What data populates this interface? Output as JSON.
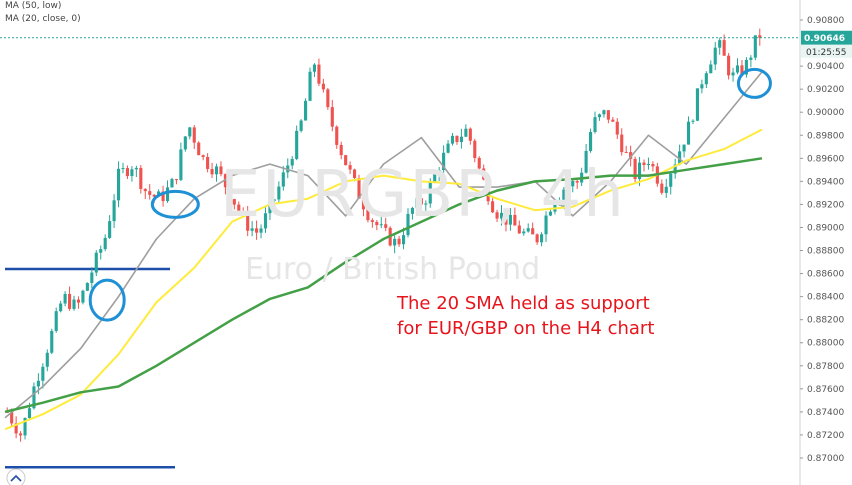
{
  "legend": {
    "ma50": "MA (50, low)",
    "ma20": "MA (20, close, 0)"
  },
  "watermark": {
    "symbol": "EURGBP, 4h",
    "description": "Euro / British Pound"
  },
  "annotation": {
    "line1": "The 20 SMA held as support",
    "line2": "for EUR/GBP on the H4 chart"
  },
  "current_price_label": "0.90646",
  "countdown_label": "01:25:55",
  "colors": {
    "up_candle": "#26a69a",
    "down_candle": "#ef5350",
    "ma20": "#9e9e9e",
    "ma50_low": "#ffeb3b",
    "ma_green": "#43a047",
    "support_line": "#1e4fa8",
    "circle": "#1e90d6",
    "price_tag": "#26a69a",
    "annotation": "#e8141c"
  },
  "chart_data": {
    "type": "line",
    "title": "",
    "y_axis_ticks": [
      "0.90800",
      "0.90400",
      "0.90200",
      "0.90000",
      "0.89800",
      "0.89600",
      "0.89400",
      "0.89200",
      "0.89000",
      "0.88800",
      "0.88600",
      "0.88400",
      "0.88200",
      "0.88000",
      "0.87800",
      "0.87600",
      "0.87400",
      "0.87200",
      "0.87000"
    ],
    "ylim": [
      0.8688,
      0.9088
    ],
    "x": [
      0,
      5,
      10,
      15,
      20,
      25,
      30,
      35,
      40,
      45,
      50,
      55,
      60,
      65,
      70,
      75,
      80,
      85,
      90,
      95,
      100
    ],
    "series": [
      {
        "name": "MA (20, close, 0)",
        "values": [
          0.8735,
          0.8762,
          0.8795,
          0.884,
          0.889,
          0.8925,
          0.8945,
          0.8955,
          0.8945,
          0.891,
          0.8955,
          0.8978,
          0.8935,
          0.8935,
          0.894,
          0.891,
          0.894,
          0.898,
          0.8955,
          0.8995,
          0.9035
        ]
      },
      {
        "name": "MA (50, low)",
        "values": [
          0.8725,
          0.8738,
          0.8755,
          0.879,
          0.8835,
          0.8865,
          0.8905,
          0.892,
          0.8925,
          0.894,
          0.8945,
          0.894,
          0.8938,
          0.8925,
          0.8915,
          0.8918,
          0.8932,
          0.8942,
          0.8958,
          0.8968,
          0.8985
        ]
      },
      {
        "name": "",
        "values": [
          0.874,
          0.8748,
          0.8757,
          0.8762,
          0.878,
          0.88,
          0.882,
          0.8838,
          0.8848,
          0.887,
          0.889,
          0.8905,
          0.892,
          0.8932,
          0.894,
          0.8942,
          0.8945,
          0.8945,
          0.895,
          0.8955,
          0.896
        ]
      }
    ],
    "candle_path": [
      0.874,
      0.872,
      0.8765,
      0.88,
      0.884,
      0.883,
      0.886,
      0.889,
      0.8945,
      0.8955,
      0.893,
      0.8925,
      0.894,
      0.899,
      0.896,
      0.895,
      0.893,
      0.8905,
      0.8895,
      0.892,
      0.895,
      0.8985,
      0.9045,
      0.9,
      0.8965,
      0.8935,
      0.891,
      0.8895,
      0.8885,
      0.8915,
      0.8925,
      0.8955,
      0.8975,
      0.8985,
      0.8945,
      0.8915,
      0.8905,
      0.8895,
      0.889,
      0.892,
      0.8935,
      0.894,
      0.899,
      0.9,
      0.8975,
      0.8945,
      0.896,
      0.8935,
      0.896,
      0.899,
      0.9035,
      0.906,
      0.903,
      0.904,
      0.907
    ],
    "support_lines": [
      0.8864,
      0.8692
    ],
    "current_price": 0.90646
  }
}
